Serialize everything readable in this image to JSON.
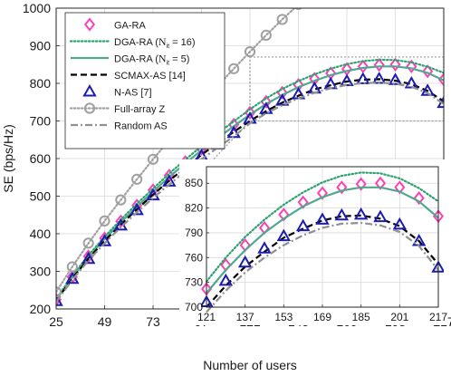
{
  "chart_data": [
    {
      "type": "line",
      "xlabel": "Number of users",
      "ylabel": "SE (bps/Hz)",
      "xlim": [
        25,
        217
      ],
      "ylim": [
        200,
        1000
      ],
      "x_ticks": [
        25,
        49,
        73,
        97,
        121,
        145,
        169,
        193,
        217
      ],
      "y_ticks": [
        200,
        300,
        400,
        500,
        600,
        700,
        800,
        900,
        1000
      ],
      "grid": true,
      "legend_position": "top-left",
      "zoom_box": {
        "x": [
          121,
          217
        ],
        "y": [
          700,
          870
        ]
      },
      "series": [
        {
          "name": "GA-RA",
          "legend_text": "GA-RA",
          "color": "#ff3fb8",
          "marker": "diamond",
          "line": "none",
          "x": [
            25,
            33,
            41,
            49,
            57,
            65,
            73,
            81,
            89,
            97,
            105,
            113,
            121,
            129,
            137,
            145,
            153,
            161,
            169,
            177,
            185,
            193,
            201,
            209,
            217
          ],
          "y": [
            225,
            285,
            340,
            388,
            433,
            475,
            516,
            555,
            591,
            626,
            659,
            690,
            722,
            751,
            775,
            796,
            812,
            827,
            838,
            845,
            849,
            850,
            845,
            832,
            810
          ]
        },
        {
          "name": "DGA-RA (N_it = 16)",
          "legend_text": "DGA-RA (",
          "legend_math": "N",
          "legend_sub": "it",
          "legend_tail": " = 16)",
          "color": "#2ca36f",
          "marker": "none",
          "line": "dotted",
          "x": [
            25,
            33,
            41,
            49,
            57,
            65,
            73,
            81,
            89,
            97,
            105,
            113,
            121,
            129,
            137,
            145,
            153,
            161,
            169,
            177,
            185,
            193,
            201,
            209,
            217
          ],
          "y": [
            227,
            288,
            343,
            392,
            437,
            480,
            520,
            560,
            597,
            633,
            667,
            699,
            731,
            760,
            785,
            806,
            824,
            839,
            851,
            859,
            863,
            862,
            856,
            844,
            828
          ]
        },
        {
          "name": "DGA-RA (N_it = 5)",
          "legend_text": "DGA-RA (",
          "legend_math": "N",
          "legend_sub": "it",
          "legend_tail": " = 5)",
          "color": "#4fa88f",
          "marker": "none",
          "line": "solid",
          "x": [
            25,
            33,
            41,
            49,
            57,
            65,
            73,
            81,
            89,
            97,
            105,
            113,
            121,
            129,
            137,
            145,
            153,
            161,
            169,
            177,
            185,
            193,
            201,
            209,
            217
          ],
          "y": [
            224,
            284,
            338,
            386,
            430,
            472,
            512,
            551,
            587,
            622,
            655,
            686,
            717,
            745,
            769,
            790,
            807,
            822,
            833,
            841,
            845,
            845,
            840,
            828,
            808
          ]
        },
        {
          "name": "SCMAX-AS [14]",
          "legend_text": "SCMAX-AS [14]",
          "color": "#000000",
          "marker": "none",
          "line": "dashed",
          "x": [
            25,
            33,
            41,
            49,
            57,
            65,
            73,
            81,
            89,
            97,
            105,
            113,
            121,
            129,
            137,
            145,
            153,
            161,
            169,
            177,
            185,
            193,
            201,
            209,
            217
          ],
          "y": [
            222,
            281,
            334,
            381,
            424,
            465,
            504,
            541,
            576,
            610,
            641,
            671,
            700,
            726,
            749,
            767,
            784,
            795,
            805,
            810,
            811,
            807,
            798,
            780,
            752
          ]
        },
        {
          "name": "N-AS [7]",
          "legend_text": "N-AS [7]",
          "color": "#1c1cb0",
          "marker": "triangle",
          "line": "none",
          "x": [
            25,
            33,
            41,
            49,
            57,
            65,
            73,
            81,
            89,
            97,
            105,
            113,
            121,
            129,
            137,
            145,
            153,
            161,
            169,
            177,
            185,
            193,
            201,
            209,
            217
          ],
          "y": [
            221,
            280,
            333,
            380,
            422,
            463,
            502,
            539,
            574,
            607,
            638,
            668,
            706,
            732,
            754,
            771,
            786,
            798,
            806,
            811,
            812,
            809,
            800,
            780,
            748
          ]
        },
        {
          "name": "Full-array Z",
          "legend_text": "Full-array Z",
          "color": "#a0a0a0",
          "marker": "circle",
          "line": "dotted",
          "x": [
            25,
            33,
            41,
            49,
            57,
            65,
            73,
            81,
            89,
            97,
            105,
            113,
            121,
            129,
            137,
            145
          ],
          "y": [
            245,
            312,
            375,
            434,
            490,
            545,
            598,
            649,
            698,
            746,
            793,
            839,
            884,
            928,
            970,
            1010
          ]
        },
        {
          "name": "Random AS",
          "legend_text": "Random AS",
          "color": "#909090",
          "marker": "none",
          "line": "dashdot",
          "x": [
            25,
            33,
            41,
            49,
            57,
            65,
            73,
            81,
            89,
            97,
            105,
            113,
            121,
            129,
            137,
            145,
            153,
            161,
            169,
            177,
            185,
            193,
            201,
            209,
            217
          ],
          "y": [
            219,
            277,
            329,
            375,
            417,
            457,
            495,
            531,
            566,
            598,
            629,
            659,
            694,
            720,
            742,
            760,
            775,
            787,
            796,
            801,
            802,
            799,
            791,
            774,
            745
          ]
        }
      ]
    },
    {
      "type": "line",
      "role": "inset",
      "xlim": [
        121,
        217
      ],
      "ylim": [
        700,
        870
      ],
      "x_ticks": [
        121,
        137,
        153,
        169,
        185,
        201,
        217
      ],
      "y_ticks": [
        700,
        730,
        760,
        790,
        820,
        850
      ],
      "grid": true,
      "series_ref": "same as main chart, restricted to x in [121, 217]"
    }
  ]
}
